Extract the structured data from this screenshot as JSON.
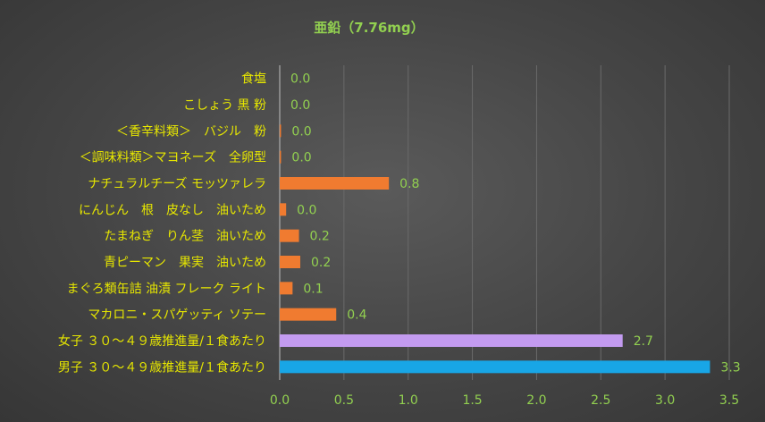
{
  "chart_data": {
    "type": "bar",
    "orientation": "horizontal",
    "title": "亜鉛（7.76mg）",
    "categories": [
      "食塩",
      "こしょう 黒 粉",
      "＜香辛料類＞　バジル　粉",
      "＜調味料類＞マヨネーズ　全卵型",
      "ナチュラルチーズ モッツァレラ",
      "にんじん　根　皮なし　油いため",
      "たまねぎ　りん茎　油いため",
      "青ピーマン　果実　油いため",
      "まぐろ類缶詰 油漬 フレーク ライト",
      "マカロニ・スパゲッティ ソテー",
      "女子 ３０～４９歳推進量/１食あたり",
      "男子 ３０～４９歳推進量/１食あたり"
    ],
    "values": [
      0.0,
      0.0,
      0.01,
      0.01,
      0.85,
      0.05,
      0.15,
      0.16,
      0.1,
      0.44,
      2.67,
      3.35
    ],
    "value_labels": [
      "0.0",
      "0.0",
      "0.0",
      "0.0",
      "0.8",
      "0.0",
      "0.2",
      "0.2",
      "0.1",
      "0.4",
      "2.7",
      "3.3"
    ],
    "bar_colors": [
      "#f07b30",
      "#f07b30",
      "#f07b30",
      "#f07b30",
      "#f07b30",
      "#f07b30",
      "#f07b30",
      "#f07b30",
      "#f07b30",
      "#f07b30",
      "#c39bf0",
      "#18a6e6"
    ],
    "xlim": [
      0,
      3.5
    ],
    "x_ticks": [
      "0.0",
      "0.5",
      "1.0",
      "1.5",
      "2.0",
      "2.5",
      "3.0",
      "3.5"
    ],
    "xlabel": "",
    "ylabel": "",
    "grid": "vertical",
    "legend": "none"
  }
}
